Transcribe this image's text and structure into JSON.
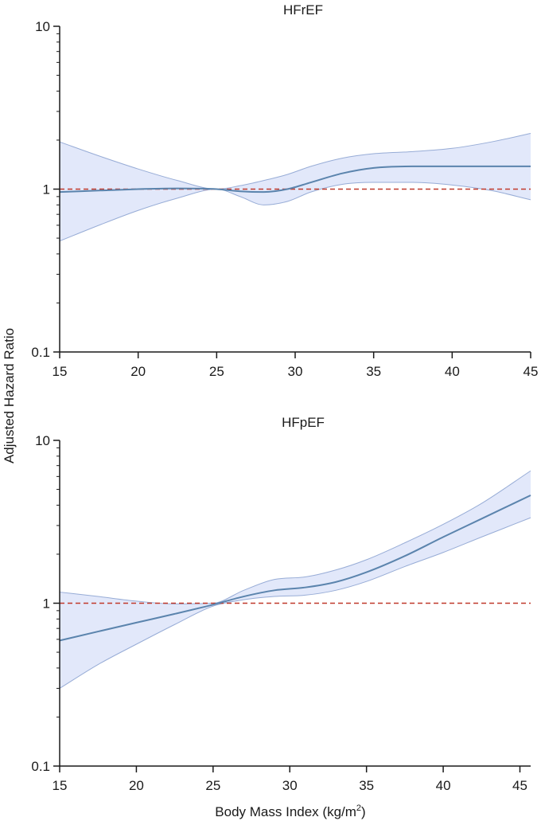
{
  "figure": {
    "ylabel": "Adjusted Hazard Ratio",
    "xlabel_text": "Body Mass Index (kg/m",
    "xlabel_sup": "2",
    "xlabel_close": ")"
  },
  "colors": {
    "band_fill": "#e2e8fa",
    "band_edge": "#97acd6",
    "line": "#5b84ad",
    "reference": "#c0392b",
    "axis": "#1a1a1a"
  },
  "chart_data": [
    {
      "type": "line",
      "title": "HFrEF",
      "yscale": "log",
      "ylim": [
        0.1,
        10
      ],
      "xlim": [
        15,
        45
      ],
      "xticks": [
        15,
        20,
        25,
        30,
        35,
        40,
        45
      ],
      "xtick_labels": [
        "15",
        "20",
        "25",
        "30",
        "35",
        "40",
        "45"
      ],
      "yticks": [
        0.1,
        1,
        10
      ],
      "ytick_labels": [
        "0.1",
        "1",
        "10"
      ],
      "reference_line": 1,
      "series": [
        {
          "x": [
            15,
            17.5,
            20,
            22.5,
            25,
            26.5,
            28,
            29.5,
            31,
            33,
            35,
            37.5,
            40,
            42.5,
            45
          ],
          "hr": [
            0.96,
            0.98,
            1.0,
            1.01,
            1.0,
            0.97,
            0.96,
            1.0,
            1.1,
            1.25,
            1.35,
            1.38,
            1.38,
            1.38,
            1.38
          ],
          "lower": [
            0.48,
            0.6,
            0.74,
            0.88,
            1.0,
            0.9,
            0.8,
            0.84,
            0.96,
            1.07,
            1.1,
            1.1,
            1.06,
            0.98,
            0.86
          ],
          "upper": [
            1.95,
            1.6,
            1.33,
            1.13,
            1.0,
            1.05,
            1.13,
            1.23,
            1.38,
            1.55,
            1.65,
            1.7,
            1.78,
            1.95,
            2.2
          ]
        }
      ]
    },
    {
      "type": "line",
      "title": "HFpEF",
      "yscale": "log",
      "ylim": [
        0.1,
        10
      ],
      "xlim": [
        15,
        45.7
      ],
      "xticks": [
        15,
        20,
        25,
        30,
        35,
        40,
        45
      ],
      "xtick_labels": [
        "15",
        "20",
        "25",
        "30",
        "35",
        "40",
        "45"
      ],
      "yticks": [
        0.1,
        1,
        10
      ],
      "ytick_labels": [
        "0.1",
        "1",
        "10"
      ],
      "reference_line": 1,
      "series": [
        {
          "x": [
            15,
            17.5,
            20,
            22.5,
            25,
            27,
            29,
            31,
            33,
            35,
            37.5,
            40,
            42.5,
            45.7
          ],
          "hr": [
            0.59,
            0.67,
            0.76,
            0.86,
            0.98,
            1.1,
            1.2,
            1.25,
            1.35,
            1.55,
            1.95,
            2.55,
            3.3,
            4.6
          ],
          "lower": [
            0.3,
            0.42,
            0.56,
            0.74,
            0.96,
            1.05,
            1.1,
            1.12,
            1.2,
            1.36,
            1.68,
            2.05,
            2.55,
            3.35
          ],
          "upper": [
            1.17,
            1.1,
            1.03,
            0.99,
            1.0,
            1.2,
            1.4,
            1.45,
            1.6,
            1.85,
            2.35,
            3.05,
            4.1,
            6.5
          ]
        }
      ]
    }
  ]
}
